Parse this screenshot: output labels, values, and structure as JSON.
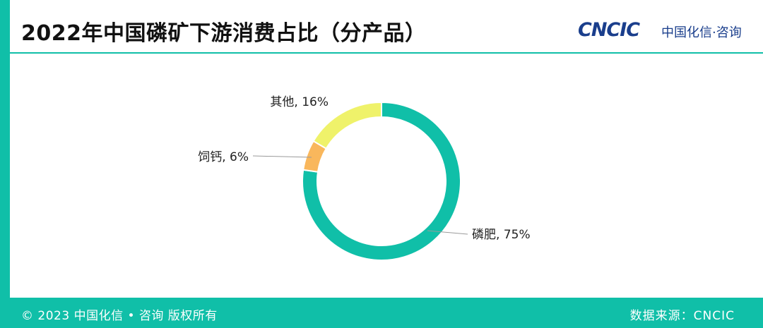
{
  "header": {
    "title": "2022年中国磷矿下游消费占比（分产品）",
    "logo_text": "CNCIC",
    "logo_cn": "中国化信·咨询"
  },
  "footer": {
    "copyright": "© 2023 中国化信 • 咨询  版权所有",
    "source": "数据来源：CNCIC"
  },
  "colors": {
    "accent": "#10bfa8",
    "logo_blue": "#1a3e8c"
  },
  "chart_data": {
    "type": "pie",
    "donut": true,
    "start_angle_deg": 0,
    "direction": "clockwise",
    "title": "",
    "slices": [
      {
        "label": "磷肥, 75%",
        "name": "磷肥",
        "value": 75,
        "color": "#10bfa8"
      },
      {
        "label": "饲钙, 6%",
        "name": "饲钙",
        "value": 6,
        "color": "#f9b75c"
      },
      {
        "label": "其他, 16%",
        "name": "其他",
        "value": 16,
        "color": "#eff26a"
      }
    ]
  }
}
